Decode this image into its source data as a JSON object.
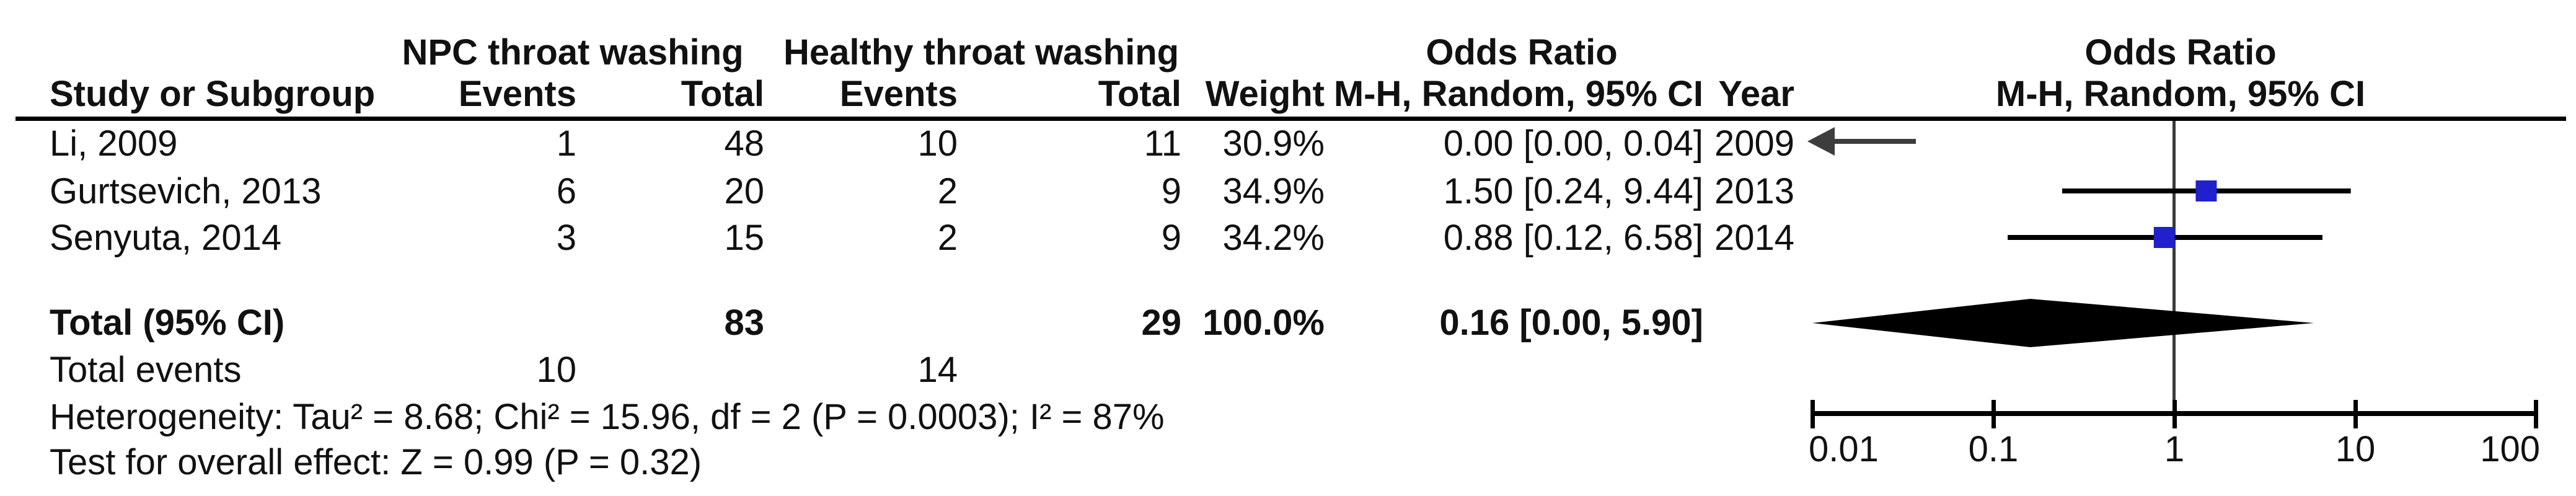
{
  "table": {
    "group1_header": "NPC throat washing",
    "group2_header": "Healthy throat washing",
    "or_header": "Odds Ratio",
    "col_study": "Study or Subgroup",
    "col_events": "Events",
    "col_total": "Total",
    "col_weight": "Weight",
    "col_mh": "M-H, Random, 95% CI",
    "col_year": "Year",
    "studies": [
      {
        "name": "Li, 2009",
        "events1": "1",
        "total1": "48",
        "events2": "10",
        "total2": "11",
        "weight": "30.9%",
        "ci": "0.00 [0.00, 0.04]",
        "year": "2009"
      },
      {
        "name": "Gurtsevich, 2013",
        "events1": "6",
        "total1": "20",
        "events2": "2",
        "total2": "9",
        "weight": "34.9%",
        "ci": "1.50 [0.24, 9.44]",
        "year": "2013"
      },
      {
        "name": "Senyuta, 2014",
        "events1": "3",
        "total1": "15",
        "events2": "2",
        "total2": "9",
        "weight": "34.2%",
        "ci": "0.88 [0.12, 6.58]",
        "year": "2014"
      }
    ],
    "total_row": {
      "label": "Total (95% CI)",
      "total1": "83",
      "total2": "29",
      "weight": "100.0%",
      "ci": "0.16 [0.00, 5.90]"
    },
    "total_events_row": {
      "label": "Total events",
      "events1": "10",
      "events2": "14"
    },
    "heterogeneity": "Heterogeneity: Tau² = 8.68; Chi² = 15.96, df = 2 (P = 0.0003); I² = 87%",
    "overall_effect": "Test for overall effect: Z = 0.99 (P = 0.32)"
  },
  "plot": {
    "title": "Odds Ratio",
    "subtitle": "M-H, Random, 95% CI",
    "axis_ticks": [
      "0.01",
      "0.1",
      "1",
      "10",
      "100"
    ],
    "marker_color": "#2020CC",
    "line_color": "#000000",
    "diamond_color": "#000000",
    "arrow_color": "#3d3d3d"
  },
  "chart_data": {
    "type": "forest",
    "effect_measure": "Odds Ratio",
    "model": "M-H, Random, 95% CI",
    "groups": [
      "NPC throat washing",
      "Healthy throat washing"
    ],
    "studies": [
      {
        "study": "Li, 2009",
        "events_npc": 1,
        "total_npc": 48,
        "events_healthy": 10,
        "total_healthy": 11,
        "weight_pct": 30.9,
        "or": 0.0,
        "ci_low": 0.0,
        "ci_high": 0.04,
        "year": 2009,
        "offscale_left": true
      },
      {
        "study": "Gurtsevich, 2013",
        "events_npc": 6,
        "total_npc": 20,
        "events_healthy": 2,
        "total_healthy": 9,
        "weight_pct": 34.9,
        "or": 1.5,
        "ci_low": 0.24,
        "ci_high": 9.44,
        "year": 2013,
        "offscale_left": false
      },
      {
        "study": "Senyuta, 2014",
        "events_npc": 3,
        "total_npc": 15,
        "events_healthy": 2,
        "total_healthy": 9,
        "weight_pct": 34.2,
        "or": 0.88,
        "ci_low": 0.12,
        "ci_high": 6.58,
        "year": 2014,
        "offscale_left": false
      }
    ],
    "total": {
      "total_npc": 83,
      "total_healthy": 29,
      "weight_pct": 100.0,
      "or": 0.16,
      "ci_low": 0.0,
      "ci_high": 5.9,
      "total_events_npc": 10,
      "total_events_healthy": 14
    },
    "x_axis": {
      "scale": "log",
      "ticks": [
        0.01,
        0.1,
        1,
        10,
        100
      ],
      "null_line": 1
    },
    "heterogeneity": {
      "tau2": 8.68,
      "chi2": 15.96,
      "df": 2,
      "p": 0.0003,
      "i2_pct": 87
    },
    "overall_effect": {
      "z": 0.99,
      "p": 0.32
    }
  }
}
